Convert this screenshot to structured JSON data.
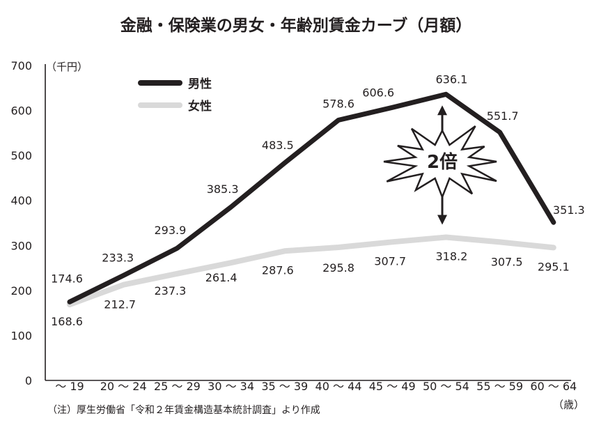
{
  "chart_data": {
    "type": "line",
    "title": "金融・保険業の男女・年齢別賃金カーブ（月額）",
    "y_unit": "（千円）",
    "x_unit": "（歳）",
    "categories": [
      "～ 19",
      "20 ～ 24",
      "25 ～ 29",
      "30 ～ 34",
      "35 ～ 39",
      "40 ～ 44",
      "45 ～ 49",
      "50 ～ 54",
      "55 ～ 59",
      "60 ～ 64"
    ],
    "series": [
      {
        "name": "男性",
        "color": "#231f20",
        "values": [
          174.6,
          233.3,
          293.9,
          385.3,
          483.5,
          578.6,
          606.6,
          636.1,
          551.7,
          351.3
        ],
        "value_labels": [
          "174.6",
          "233.3",
          "293.9",
          "385.3",
          "483.5",
          "578.6",
          "606.6",
          "636.1",
          "551.7",
          "351.3"
        ]
      },
      {
        "name": "女性",
        "color": "#d9d9d9",
        "values": [
          168.6,
          212.7,
          237.3,
          261.4,
          287.6,
          295.8,
          307.7,
          318.2,
          307.5,
          295.1
        ],
        "value_labels": [
          "168.6",
          "212.7",
          "237.3",
          "261.4",
          "287.6",
          "295.8",
          "307.7",
          "318.2",
          "307.5",
          "295.1"
        ]
      }
    ],
    "ylim": [
      0,
      700
    ],
    "yticks": [
      0,
      100,
      200,
      300,
      400,
      500,
      600,
      700
    ],
    "ytick_labels": [
      "0",
      "100",
      "200",
      "300",
      "400",
      "500",
      "600",
      "700"
    ],
    "grid": false,
    "legend_position": "top-left",
    "annotation": "2倍",
    "note": "（注）厚生労働省「令和２年賃金構造基本統計調査」より作成"
  }
}
